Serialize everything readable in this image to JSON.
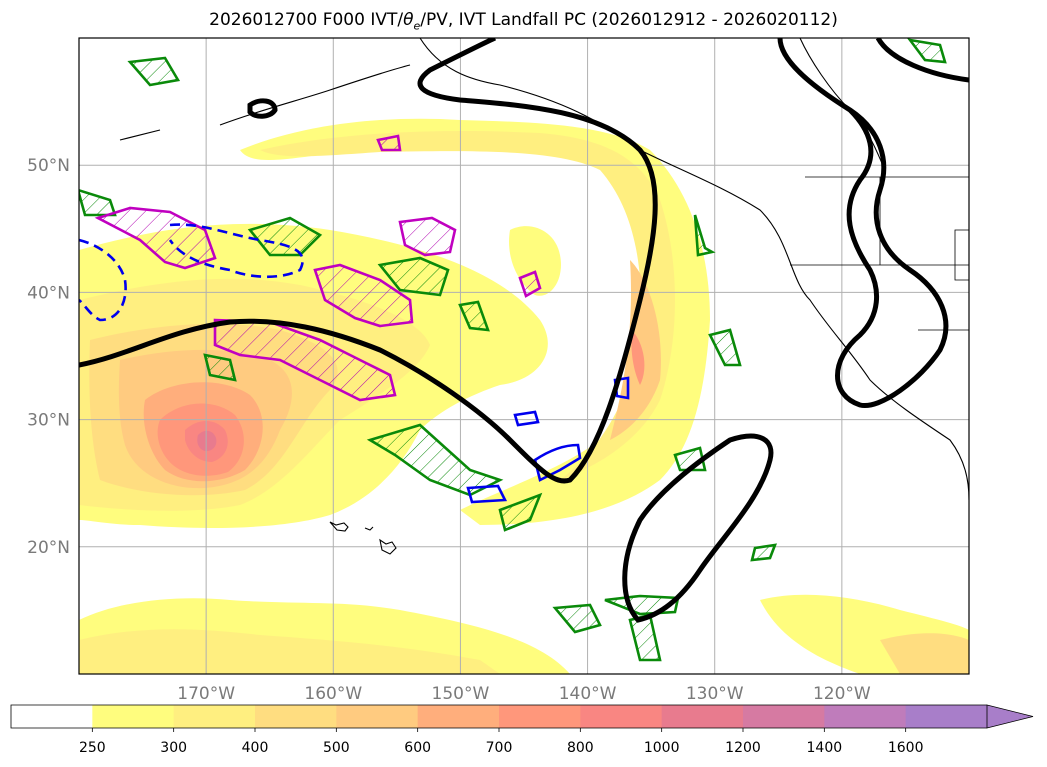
{
  "chart_data": {
    "type": "heatmap",
    "title": "2026012700 F000 IVT/θe/PV, IVT Landfall PC (2026012912 - 2026020112)",
    "title_prefix": "2026012700 F000 IVT/",
    "title_theta": "θ",
    "title_theta_sub": "e",
    "title_suffix": "/PV, IVT Landfall PC (2026012912 - 2026020112)",
    "lon_range": [
      -180,
      -110
    ],
    "lat_range": [
      10,
      60
    ],
    "lat_ticks": [
      {
        "value": 20,
        "label": "20°N"
      },
      {
        "value": 30,
        "label": "30°N"
      },
      {
        "value": 40,
        "label": "40°N"
      },
      {
        "value": 50,
        "label": "50°N"
      }
    ],
    "lon_ticks": [
      {
        "value": -170,
        "label": "170°W"
      },
      {
        "value": -160,
        "label": "160°W"
      },
      {
        "value": -150,
        "label": "150°W"
      },
      {
        "value": -140,
        "label": "140°W"
      },
      {
        "value": -130,
        "label": "130°W"
      },
      {
        "value": -120,
        "label": "120°W"
      }
    ],
    "grid": true,
    "colorbar": {
      "levels": [
        "250",
        "300",
        "400",
        "500",
        "600",
        "700",
        "800",
        "1000",
        "1200",
        "1400",
        "1600"
      ],
      "colors": [
        "#ffffff",
        "#fffd7e",
        "#ffef80",
        "#ffdd80",
        "#ffcb80",
        "#ffae7c",
        "#ff977b",
        "#f98682",
        "#e87b8e",
        "#d67aa2",
        "#bf7cbb",
        "#a87ec9"
      ],
      "extend": "max"
    },
    "ivt_maxima": [
      {
        "lon": -170,
        "lat": 28,
        "level": "1000"
      },
      {
        "lon": -134,
        "lat": 35,
        "level": "1000"
      }
    ]
  }
}
